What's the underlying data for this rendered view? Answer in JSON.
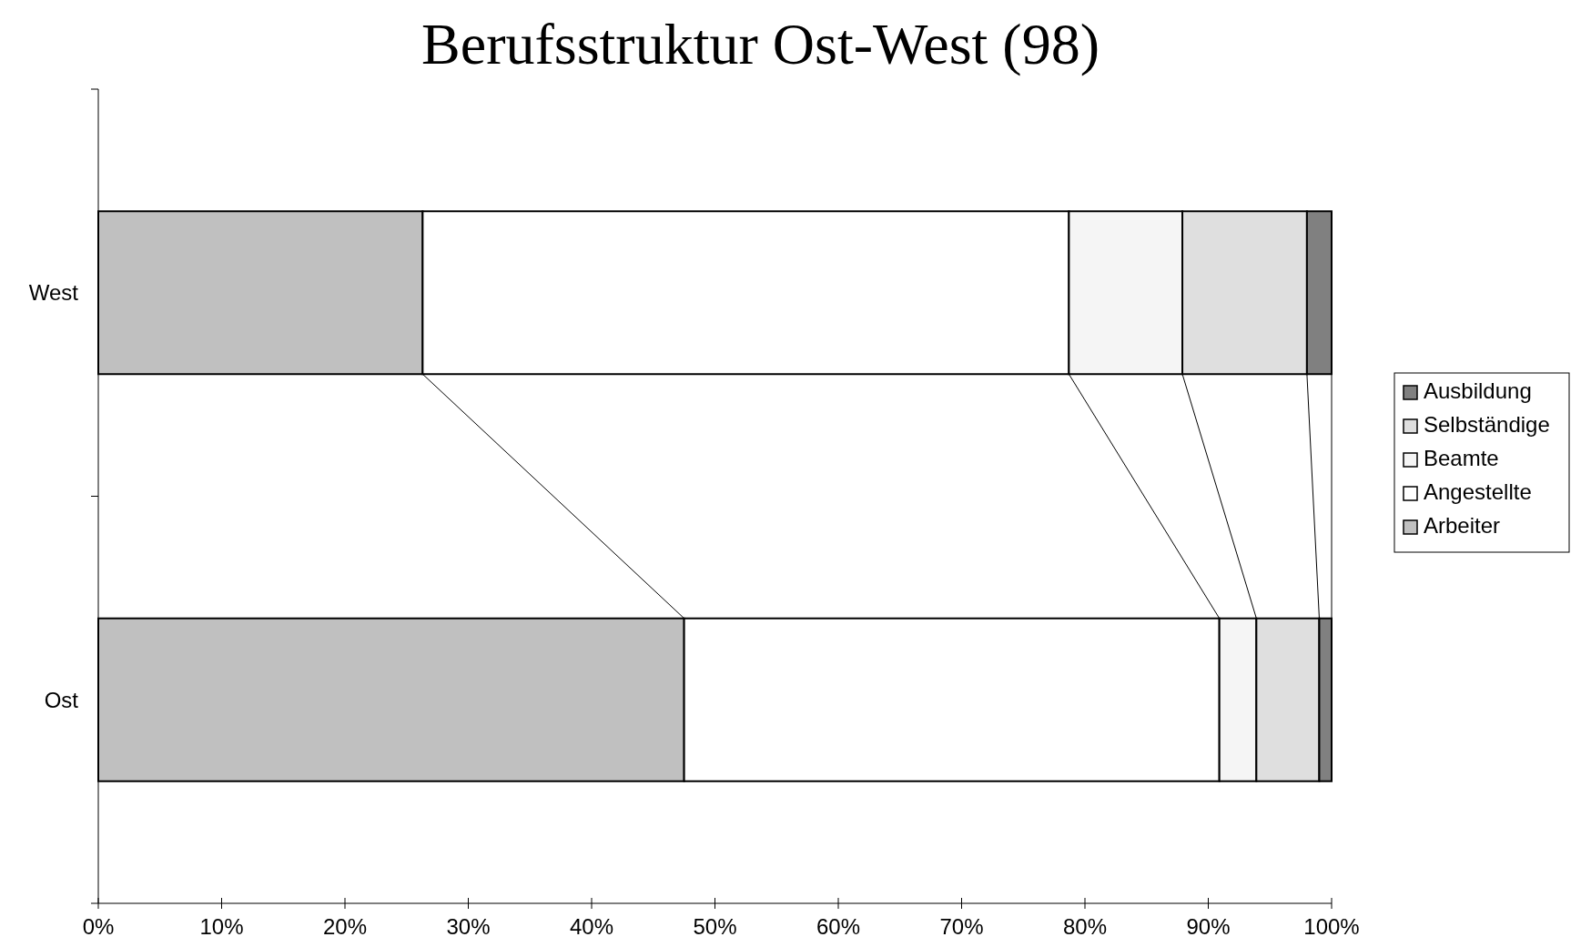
{
  "chart_data": {
    "type": "bar",
    "title": "Berufsstruktur Ost-West (98)",
    "orientation": "horizontal",
    "stacked": true,
    "categories": [
      "West",
      "Ost"
    ],
    "series": [
      {
        "name": "Arbeiter",
        "color": "#c0c0c0",
        "values": [
          26.3,
          47.5
        ]
      },
      {
        "name": "Angestellte",
        "color": "#ffffff",
        "values": [
          52.4,
          43.4
        ]
      },
      {
        "name": "Beamte",
        "color": "#f5f5f5",
        "values": [
          9.2,
          3.0
        ]
      },
      {
        "name": "Selbständige",
        "color": "#dfdfdf",
        "values": [
          10.1,
          5.1
        ]
      },
      {
        "name": "Ausbildung",
        "color": "#808080",
        "values": [
          2.0,
          1.0
        ]
      }
    ],
    "xlim": [
      0,
      100
    ],
    "xticks": [
      {
        "value": 0,
        "label": "0%"
      },
      {
        "value": 10,
        "label": "10%"
      },
      {
        "value": 20,
        "label": "20%"
      },
      {
        "value": 30,
        "label": "30%"
      },
      {
        "value": 40,
        "label": "40%"
      },
      {
        "value": 50,
        "label": "50%"
      },
      {
        "value": 60,
        "label": "60%"
      },
      {
        "value": 70,
        "label": "70%"
      },
      {
        "value": 80,
        "label": "80%"
      },
      {
        "value": 90,
        "label": "90%"
      },
      {
        "value": 100,
        "label": "100%"
      }
    ],
    "grid": false,
    "legend": "right"
  }
}
